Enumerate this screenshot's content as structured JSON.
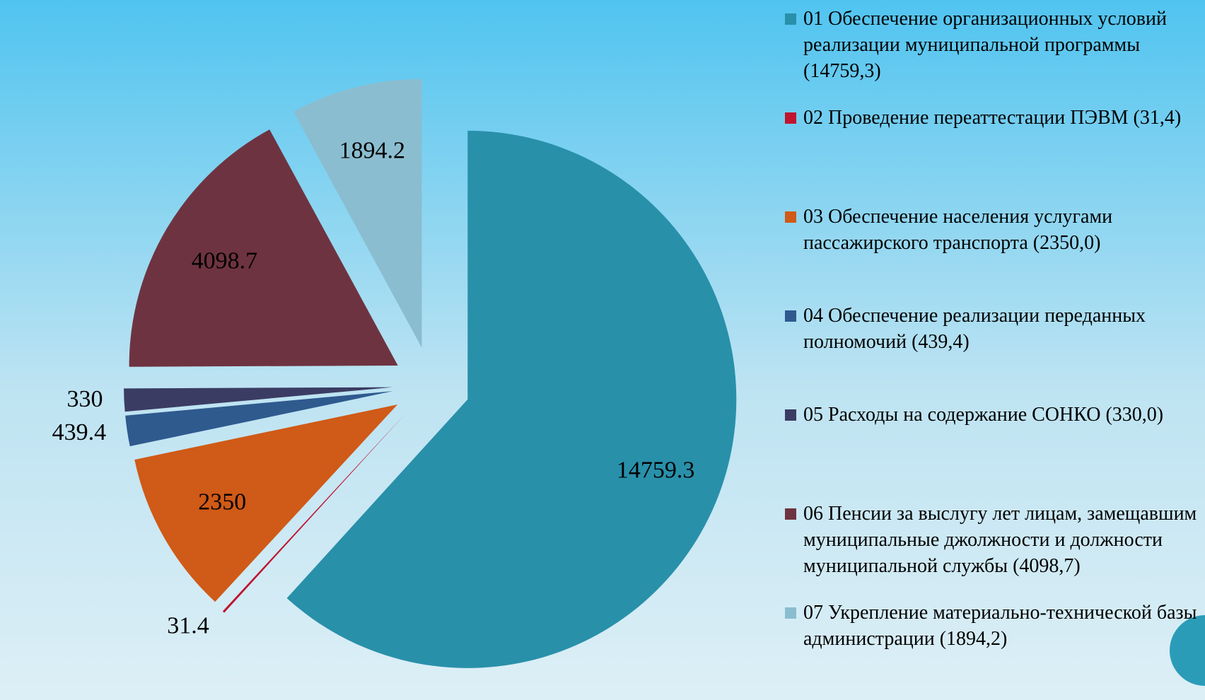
{
  "chart_data": {
    "type": "pie",
    "categories": [
      "01 Обеспечение организационных условий реализации муниципальной программы (14759,3)",
      "02 Проведение переаттестации ПЭВМ (31,4)",
      "03 Обеспечение населения услугами пассажирского транспорта (2350,0)",
      "04 Обеспечение реализации переданных полномочий (439,4)",
      "05 Расходы на содержание СОНКО (330,0)",
      "06 Пенсии за выслугу лет лицам, замещавшим муниципальные джолжности и должности муниципальной службы (4098,7)",
      "07 Укрепление материально-технической базы администрации (1894,2)"
    ],
    "values": [
      14759.3,
      31.4,
      2350,
      439.4,
      330,
      4098.7,
      1894.2
    ],
    "colors": [
      "#2990aa",
      "#c0152f",
      "#d05a17",
      "#2f5a8e",
      "#3b3c63",
      "#6e3340",
      "#8bbdd0"
    ],
    "legend": "right"
  }
}
